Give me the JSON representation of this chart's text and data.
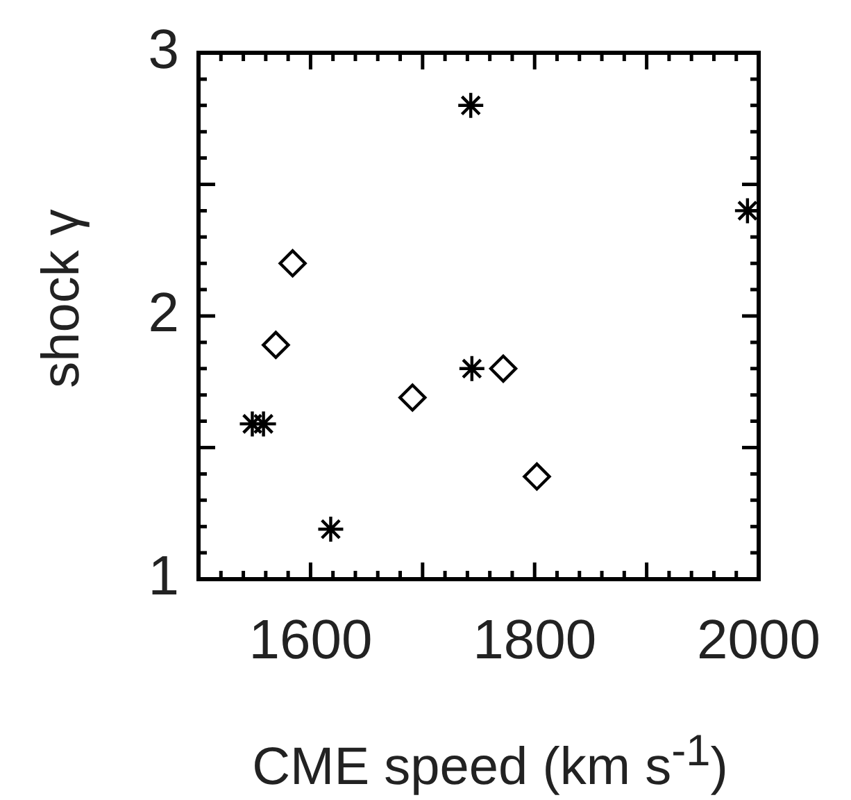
{
  "chart_data": {
    "type": "scatter",
    "xlabel": "CME speed (km s$^{-1}$)",
    "ylabel": "shock γ",
    "xlim": [
      1500,
      2000
    ],
    "ylim": [
      1,
      3
    ],
    "xticks": [
      {
        "value": 1500,
        "label": null
      },
      1600,
      {
        "value": 1700,
        "label": null
      },
      1800,
      {
        "value": 1900,
        "label": null
      },
      2000
    ],
    "yticks": [
      1,
      {
        "value": 1.5,
        "label": null
      },
      2,
      {
        "value": 2.5,
        "label": null
      },
      3
    ],
    "grid": false,
    "legend": false,
    "series": [
      {
        "color": "#000000",
        "marker": "cross",
        "x": [
          1743,
          1990,
          1744,
          1548,
          1558,
          1618
        ],
        "values": [
          2.8,
          2.4,
          1.8,
          1.59,
          1.59,
          1.19
        ]
      },
      {
        "color": "#000000",
        "marker": "diamond",
        "x": [
          1584,
          1569,
          1691,
          1772,
          1802
        ],
        "values": [
          2.2,
          1.89,
          1.69,
          1.8,
          1.39
        ]
      }
    ]
  }
}
